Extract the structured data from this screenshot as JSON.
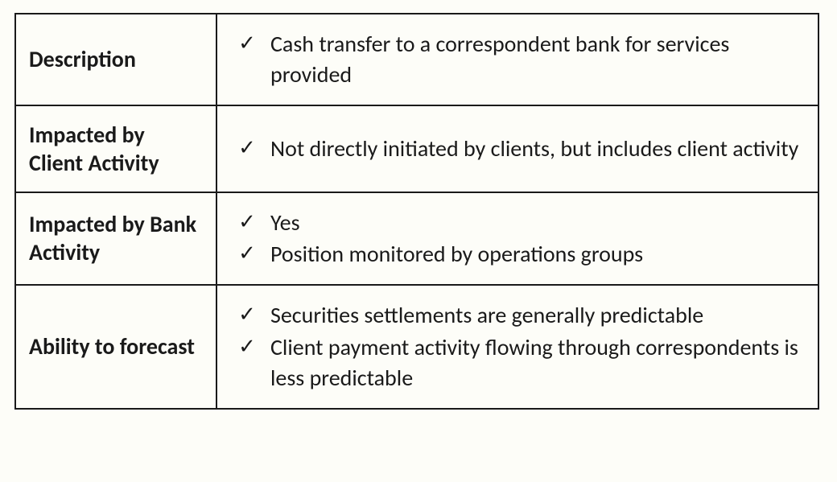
{
  "table": {
    "border_color": "#1a1a1a",
    "background_color": "#fdfdf8",
    "label_fontsize": 28,
    "value_fontsize": 28,
    "label_fontweight": 700,
    "label_col_width": 250,
    "rows": [
      {
        "label": "Description",
        "items": [
          "Cash transfer to a correspondent bank for services provided"
        ]
      },
      {
        "label": "Impacted by Client Activity",
        "items": [
          "Not directly initiated by clients, but includes client activity"
        ]
      },
      {
        "label": "Impacted by Bank Activity",
        "items": [
          "Yes",
          "Position monitored by operations groups"
        ]
      },
      {
        "label": "Ability to forecast",
        "items": [
          "Securities settlements are generally predictable",
          "Client payment activity flowing through correspondents is less predictable"
        ]
      }
    ],
    "check_glyph": "✓"
  }
}
